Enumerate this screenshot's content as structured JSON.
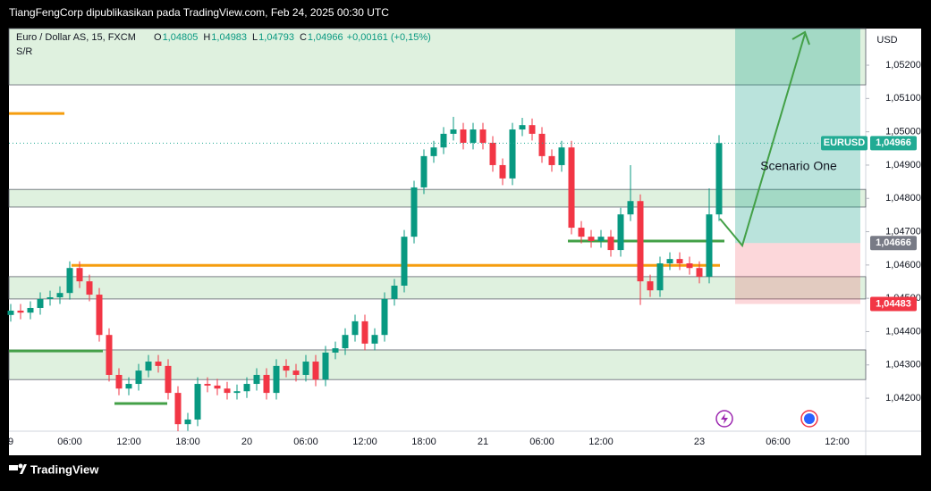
{
  "header": {
    "title": "TiangFengCorp dipublikasikan pada TradingView.com, Feb 24, 2025 00:30 UTC"
  },
  "footer": {
    "brand": "TradingView"
  },
  "chart_data": {
    "type": "candlestick",
    "title": "Euro / Dollar AS, 15, FXCM",
    "ohlc_legend": [
      {
        "key": "O",
        "value": "1,04805"
      },
      {
        "key": "H",
        "value": "1,04983"
      },
      {
        "key": "L",
        "value": "1,04793"
      },
      {
        "key": "C",
        "value": "1,04966"
      }
    ],
    "change": "+0,00161 (+0,15%)",
    "indicator": "S/R",
    "currency": "USD",
    "annotation": "Scenario One",
    "up_color": "#089981",
    "down_color": "#f23645",
    "categories": [
      "9",
      null,
      null,
      null,
      null,
      null,
      "06:00",
      null,
      null,
      null,
      null,
      null,
      "12:00",
      null,
      null,
      null,
      null,
      null,
      "18:00",
      null,
      null,
      null,
      null,
      null,
      "20",
      null,
      null,
      null,
      null,
      null,
      "06:00",
      null,
      null,
      null,
      null,
      null,
      "12:00",
      null,
      null,
      null,
      null,
      null,
      "18:00",
      null,
      null,
      null,
      null,
      null,
      "21",
      null,
      null,
      null,
      null,
      null,
      "06:00",
      null,
      null,
      null,
      null,
      null,
      "12:00",
      null,
      null,
      null,
      null,
      null,
      null,
      null,
      null,
      null,
      "23",
      null,
      null,
      null,
      null,
      null,
      null,
      null,
      "06:00",
      null,
      null,
      null,
      null,
      null,
      "12:00",
      null,
      null
    ],
    "open": [
      1.0445,
      1.04463,
      1.04457,
      1.04471,
      1.04498,
      1.04503,
      1.04516,
      1.04591,
      1.04551,
      1.04511,
      1.0439,
      1.0427,
      1.04229,
      1.04243,
      1.04283,
      1.0431,
      1.04297,
      1.04216,
      1.04122,
      1.04136,
      1.04243,
      1.04238,
      1.04229,
      1.04216,
      1.04221,
      1.04243,
      1.0427,
      1.04216,
      1.04297,
      1.04283,
      1.0427,
      1.0431,
      1.04256,
      1.04337,
      1.0435,
      1.0439,
      1.04431,
      1.04364,
      1.0439,
      1.04498,
      1.04538,
      1.04685,
      1.04833,
      1.04927,
      1.04953,
      1.04994,
      1.05007,
      1.04967,
      1.05007,
      1.04967,
      1.049,
      1.0486,
      1.05007,
      1.0502,
      1.04994,
      1.04927,
      1.049,
      1.04953,
      1.04712,
      1.04685,
      1.04672,
      1.04685,
      1.04645,
      1.04752,
      1.04792,
      1.04551,
      1.04524,
      1.04605,
      1.04618,
      1.04605,
      1.04591,
      1.04565,
      1.04752,
      null,
      null,
      null,
      null,
      null,
      null,
      null,
      null,
      null,
      null,
      null,
      null,
      null,
      null
    ],
    "high": [
      1.04483,
      1.04483,
      1.04491,
      1.04518,
      1.04523,
      1.04536,
      1.04611,
      1.04611,
      1.04571,
      1.04531,
      1.0441,
      1.0429,
      1.04263,
      1.04303,
      1.0433,
      1.0433,
      1.04317,
      1.04236,
      1.04156,
      1.04263,
      1.04263,
      1.04258,
      1.04249,
      1.04241,
      1.04263,
      1.0429,
      1.0429,
      1.04317,
      1.04317,
      1.04303,
      1.0433,
      1.0433,
      1.04357,
      1.0437,
      1.0441,
      1.04451,
      1.04451,
      1.0441,
      1.04518,
      1.04558,
      1.04705,
      1.04853,
      1.04947,
      1.04973,
      1.05014,
      1.05045,
      1.05027,
      1.05027,
      1.05027,
      1.04987,
      1.0492,
      1.05027,
      1.05042,
      1.0504,
      1.05014,
      1.04947,
      1.04973,
      1.04973,
      1.04732,
      1.04705,
      1.04705,
      1.04705,
      1.04772,
      1.049,
      1.04812,
      1.04571,
      1.04625,
      1.04638,
      1.04638,
      1.04625,
      1.04611,
      1.0483,
      1.0499,
      null,
      null,
      null,
      null,
      null,
      null,
      null,
      null,
      null,
      null,
      null,
      null,
      null,
      null
    ],
    "low": [
      1.0443,
      1.04437,
      1.04437,
      1.04451,
      1.04478,
      1.04483,
      1.04496,
      1.04531,
      1.04491,
      1.0437,
      1.0425,
      1.04209,
      1.04209,
      1.04223,
      1.04263,
      1.04277,
      1.04196,
      1.04101,
      1.04102,
      1.04116,
      1.04218,
      1.04209,
      1.04196,
      1.04196,
      1.04201,
      1.04223,
      1.04196,
      1.04196,
      1.04263,
      1.0425,
      1.0425,
      1.04236,
      1.04236,
      1.04317,
      1.0433,
      1.0437,
      1.04344,
      1.04344,
      1.0437,
      1.04478,
      1.04518,
      1.04665,
      1.04813,
      1.04907,
      1.04933,
      1.04974,
      1.04947,
      1.04947,
      1.04947,
      1.0488,
      1.0484,
      1.0484,
      1.04987,
      1.04974,
      1.04907,
      1.0488,
      1.0488,
      1.04692,
      1.04665,
      1.04652,
      1.04652,
      1.04625,
      1.04625,
      1.04732,
      1.0448,
      1.04504,
      1.04504,
      1.04585,
      1.04585,
      1.04571,
      1.04545,
      1.04545,
      1.04732,
      null,
      null,
      null,
      null,
      null,
      null,
      null,
      null,
      null,
      null,
      null,
      null,
      null,
      null
    ],
    "close": [
      1.04463,
      1.04457,
      1.04471,
      1.04498,
      1.04503,
      1.04516,
      1.04591,
      1.04551,
      1.04511,
      1.0439,
      1.0427,
      1.04229,
      1.04243,
      1.04283,
      1.0431,
      1.04297,
      1.04216,
      1.04122,
      1.04136,
      1.04243,
      1.04238,
      1.04229,
      1.04216,
      1.04221,
      1.04243,
      1.0427,
      1.04216,
      1.04297,
      1.04283,
      1.0427,
      1.0431,
      1.04256,
      1.04337,
      1.0435,
      1.0439,
      1.04431,
      1.04364,
      1.0439,
      1.04498,
      1.04538,
      1.04685,
      1.04833,
      1.04927,
      1.04953,
      1.04994,
      1.05007,
      1.04967,
      1.05007,
      1.04967,
      1.049,
      1.0486,
      1.05007,
      1.0502,
      1.04994,
      1.04927,
      1.049,
      1.04953,
      1.04712,
      1.04685,
      1.04672,
      1.04685,
      1.04645,
      1.04752,
      1.04792,
      1.04551,
      1.04524,
      1.04605,
      1.04618,
      1.04605,
      1.04591,
      1.04565,
      1.04752,
      1.04966,
      null,
      null,
      null,
      null,
      null,
      null,
      null,
      null,
      null,
      null,
      null,
      null,
      null,
      null
    ],
    "ylim": [
      1.04101,
      1.0531
    ],
    "yticks": [
      {
        "value": 1.052,
        "label": "1,05200"
      },
      {
        "value": 1.051,
        "label": "1,05100"
      },
      {
        "value": 1.05,
        "label": "1,05000"
      },
      {
        "value": 1.049,
        "label": "1,04900"
      },
      {
        "value": 1.048,
        "label": "1,04800"
      },
      {
        "value": 1.047,
        "label": "1,04700"
      },
      {
        "value": 1.046,
        "label": "1,04600"
      },
      {
        "value": 1.045,
        "label": "1,04500"
      },
      {
        "value": 1.044,
        "label": "1,04400"
      },
      {
        "value": 1.043,
        "label": "1,04300"
      },
      {
        "value": 1.042,
        "label": "1,04200"
      }
    ],
    "zones": [
      {
        "from": 1.05141,
        "to": 1.0531
      },
      {
        "from": 1.04774,
        "to": 1.04827
      },
      {
        "from": 1.04498,
        "to": 1.04565
      },
      {
        "from": 1.04256,
        "to": 1.04345
      }
    ],
    "levels": [
      {
        "value": 1.05055,
        "color": "#f59d0e"
      },
      {
        "value": 1.04599,
        "color": "#f59d0e"
      },
      {
        "value": 1.04672,
        "color": "#43a047"
      },
      {
        "value": 1.04342,
        "color": "#43a047"
      },
      {
        "value": 1.04184,
        "color": "#43a047"
      }
    ],
    "position": {
      "target": 1.0531,
      "entry": 1.04666,
      "stop": 1.04483
    },
    "price_tags": [
      {
        "name": "EURUSD",
        "value": 1.04966,
        "label": "1,04966",
        "color": "#22ab94"
      },
      {
        "value": 1.04666,
        "label": "1,04666",
        "color": "#787b86"
      },
      {
        "value": 1.04483,
        "label": "1,04483",
        "color": "#f23645"
      }
    ]
  }
}
